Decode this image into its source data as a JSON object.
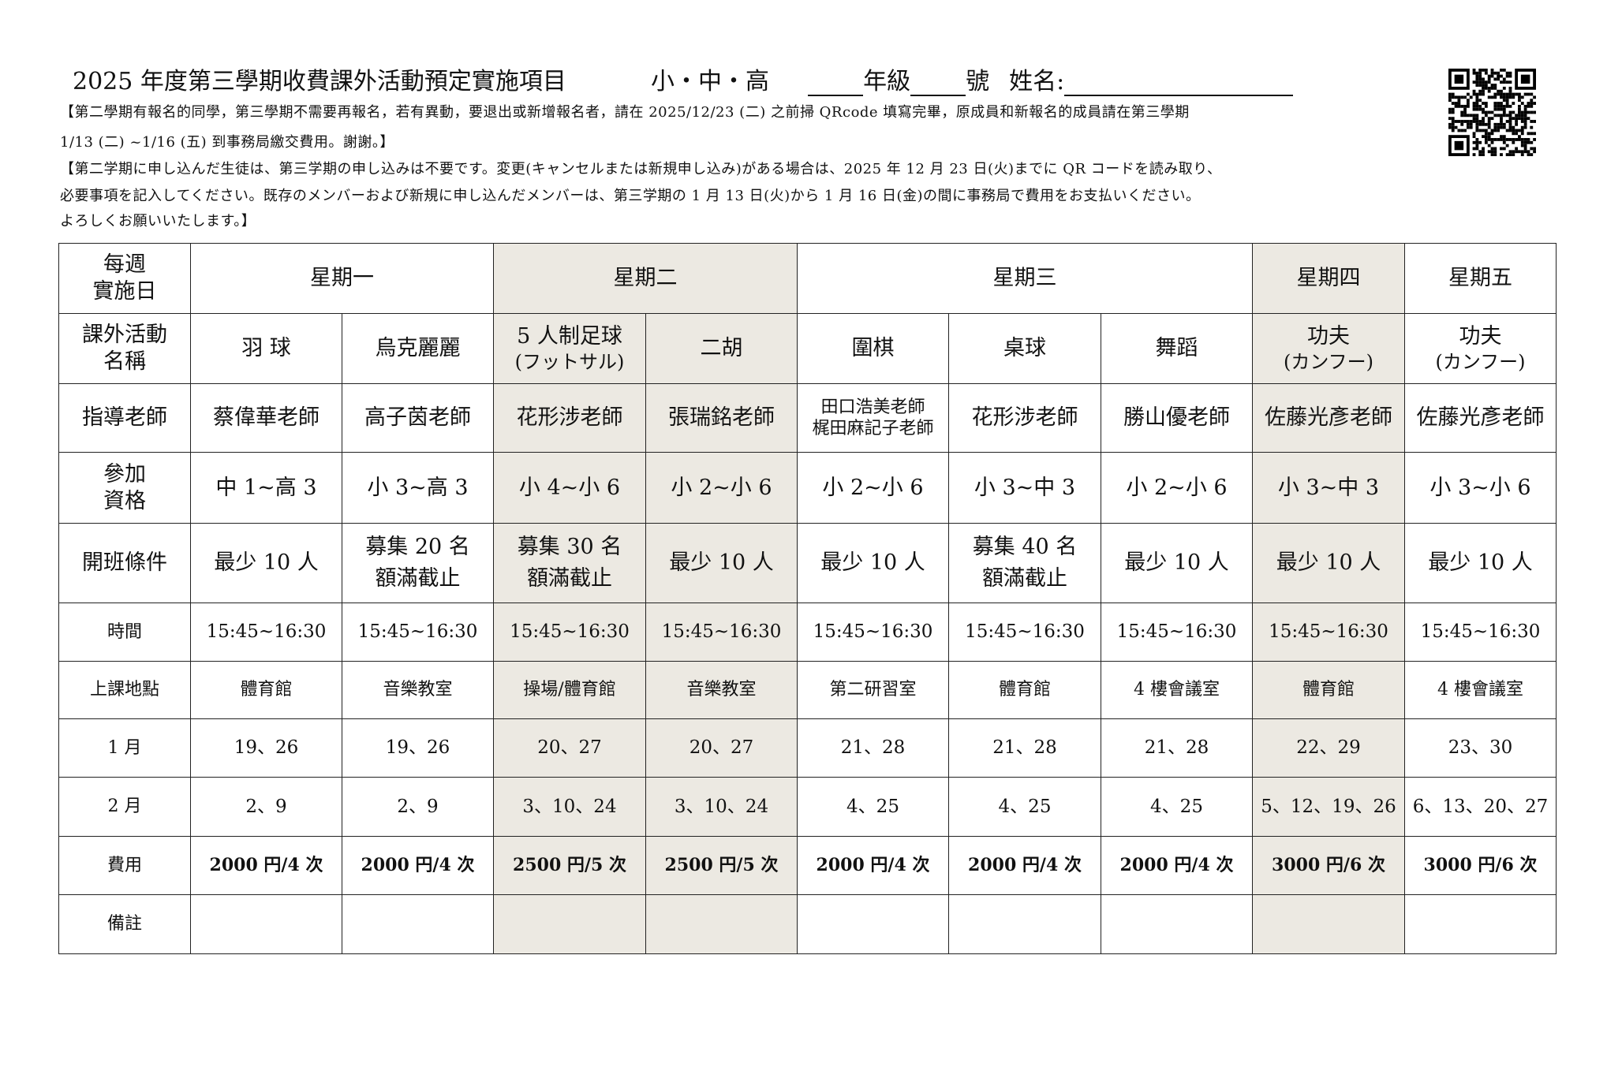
{
  "header": {
    "title": "2025 年度第三學期收費課外活動預定實施項目",
    "levels": "小・中・高",
    "grade_label": "年級",
    "number_label": "號",
    "name_label": "姓名:",
    "qr_icon": "qr-code"
  },
  "notes": [
    "【第二學期有報名的同學，第三學期不需要再報名，若有異動，要退出或新增報名者，請在 2025/12/23 (二) 之前掃 QRcode 填寫完畢，原成員和新報名的成員請在第三學期",
    "1/13 (二) ~1/16 (五) 到事務局繳交費用。謝謝。】",
    "【第二学期に申し込んだ生徒は、第三学期の申し込みは不要です。変更(キャンセルまたは新規申し込み)がある場合は、2025 年 12 月 23 日(火)までに QR コードを読み取り、",
    "必要事項を記入してください。既存のメンバーおよび新規に申し込んだメンバーは、第三学期の 1 月 13 日(火)から 1 月 16 日(金)の間に事務局で費用をお支払いください。",
    "よろしくお願いいたします。】"
  ],
  "colors": {
    "shade": "#ece9e2",
    "line": "#222222"
  },
  "table": {
    "row_labels": {
      "day": [
        "每週",
        "實施日"
      ],
      "activity": [
        "課外活動",
        "名稱"
      ],
      "teacher": "指導老師",
      "eligibility": [
        "參加",
        "資格"
      ],
      "condition": "開班條件",
      "time": "時間",
      "place": "上課地點",
      "jan": "1 月",
      "feb": "2 月",
      "fee": "費用",
      "remarks": "備註"
    },
    "days": [
      {
        "label": "星期一",
        "span": 2,
        "shaded": false
      },
      {
        "label": "星期二",
        "span": 2,
        "shaded": true
      },
      {
        "label": "星期三",
        "span": 3,
        "shaded": false
      },
      {
        "label": "星期四",
        "span": 1,
        "shaded": true
      },
      {
        "label": "星期五",
        "span": 1,
        "shaded": false
      }
    ],
    "activities": [
      {
        "name": [
          "羽 球"
        ],
        "teacher": [
          "蔡偉華老師"
        ],
        "eligibility": "中 1~高 3",
        "condition": [
          "最少 10 人"
        ],
        "time": "15:45~16:30",
        "place": "體育館",
        "jan": "19、26",
        "feb": "2、9",
        "fee": "2000 円/4 次",
        "remarks": "",
        "shaded": false
      },
      {
        "name": [
          "烏克麗麗"
        ],
        "teacher": [
          "高子茵老師"
        ],
        "eligibility": "小 3~高 3",
        "condition": [
          "募集 20 名",
          "額滿截止"
        ],
        "time": "15:45~16:30",
        "place": "音樂教室",
        "jan": "19、26",
        "feb": "2、9",
        "fee": "2000 円/4 次",
        "remarks": "",
        "shaded": false
      },
      {
        "name": [
          "5 人制足球",
          "(フットサル)"
        ],
        "teacher": [
          "花形涉老師"
        ],
        "eligibility": "小 4~小 6",
        "condition": [
          "募集 30 名",
          "額滿截止"
        ],
        "time": "15:45~16:30",
        "place": "操場/體育館",
        "jan": "20、27",
        "feb": "3、10、24",
        "fee": "2500 円/5 次",
        "remarks": "",
        "shaded": true
      },
      {
        "name": [
          "二胡"
        ],
        "teacher": [
          "張瑞銘老師"
        ],
        "eligibility": "小 2~小 6",
        "condition": [
          "最少 10 人"
        ],
        "time": "15:45~16:30",
        "place": "音樂教室",
        "jan": "20、27",
        "feb": "3、10、24",
        "fee": "2500 円/5 次",
        "remarks": "",
        "shaded": true
      },
      {
        "name": [
          "圍棋"
        ],
        "teacher": [
          "田口浩美老師",
          "梶田麻記子老師"
        ],
        "eligibility": "小 2~小 6",
        "condition": [
          "最少 10 人"
        ],
        "time": "15:45~16:30",
        "place": "第二研習室",
        "jan": "21、28",
        "feb": "4、25",
        "fee": "2000 円/4 次",
        "remarks": "",
        "shaded": false
      },
      {
        "name": [
          "桌球"
        ],
        "teacher": [
          "花形涉老師"
        ],
        "eligibility": "小 3~中 3",
        "condition": [
          "募集 40 名",
          "額滿截止"
        ],
        "time": "15:45~16:30",
        "place": "體育館",
        "jan": "21、28",
        "feb": "4、25",
        "fee": "2000 円/4 次",
        "remarks": "",
        "shaded": false
      },
      {
        "name": [
          "舞蹈"
        ],
        "teacher": [
          "勝山優老師"
        ],
        "eligibility": "小 2~小 6",
        "condition": [
          "最少 10 人"
        ],
        "time": "15:45~16:30",
        "place": "4 樓會議室",
        "jan": "21、28",
        "feb": "4、25",
        "fee": "2000 円/4 次",
        "remarks": "",
        "shaded": false
      },
      {
        "name": [
          "功夫",
          "(カンフー)"
        ],
        "teacher": [
          "佐藤光彥老師"
        ],
        "eligibility": "小 3~中 3",
        "condition": [
          "最少 10 人"
        ],
        "time": "15:45~16:30",
        "place": "體育館",
        "jan": "22、29",
        "feb": "5、12、19、26",
        "fee": "3000 円/6 次",
        "remarks": "",
        "shaded": true
      },
      {
        "name": [
          "功夫",
          "(カンフー)"
        ],
        "teacher": [
          "佐藤光彥老師"
        ],
        "eligibility": "小 3~小 6",
        "condition": [
          "最少 10 人"
        ],
        "time": "15:45~16:30",
        "place": "4 樓會議室",
        "jan": "23、30",
        "feb": "6、13、20、27",
        "fee": "3000 円/6 次",
        "remarks": "",
        "shaded": false
      }
    ]
  }
}
